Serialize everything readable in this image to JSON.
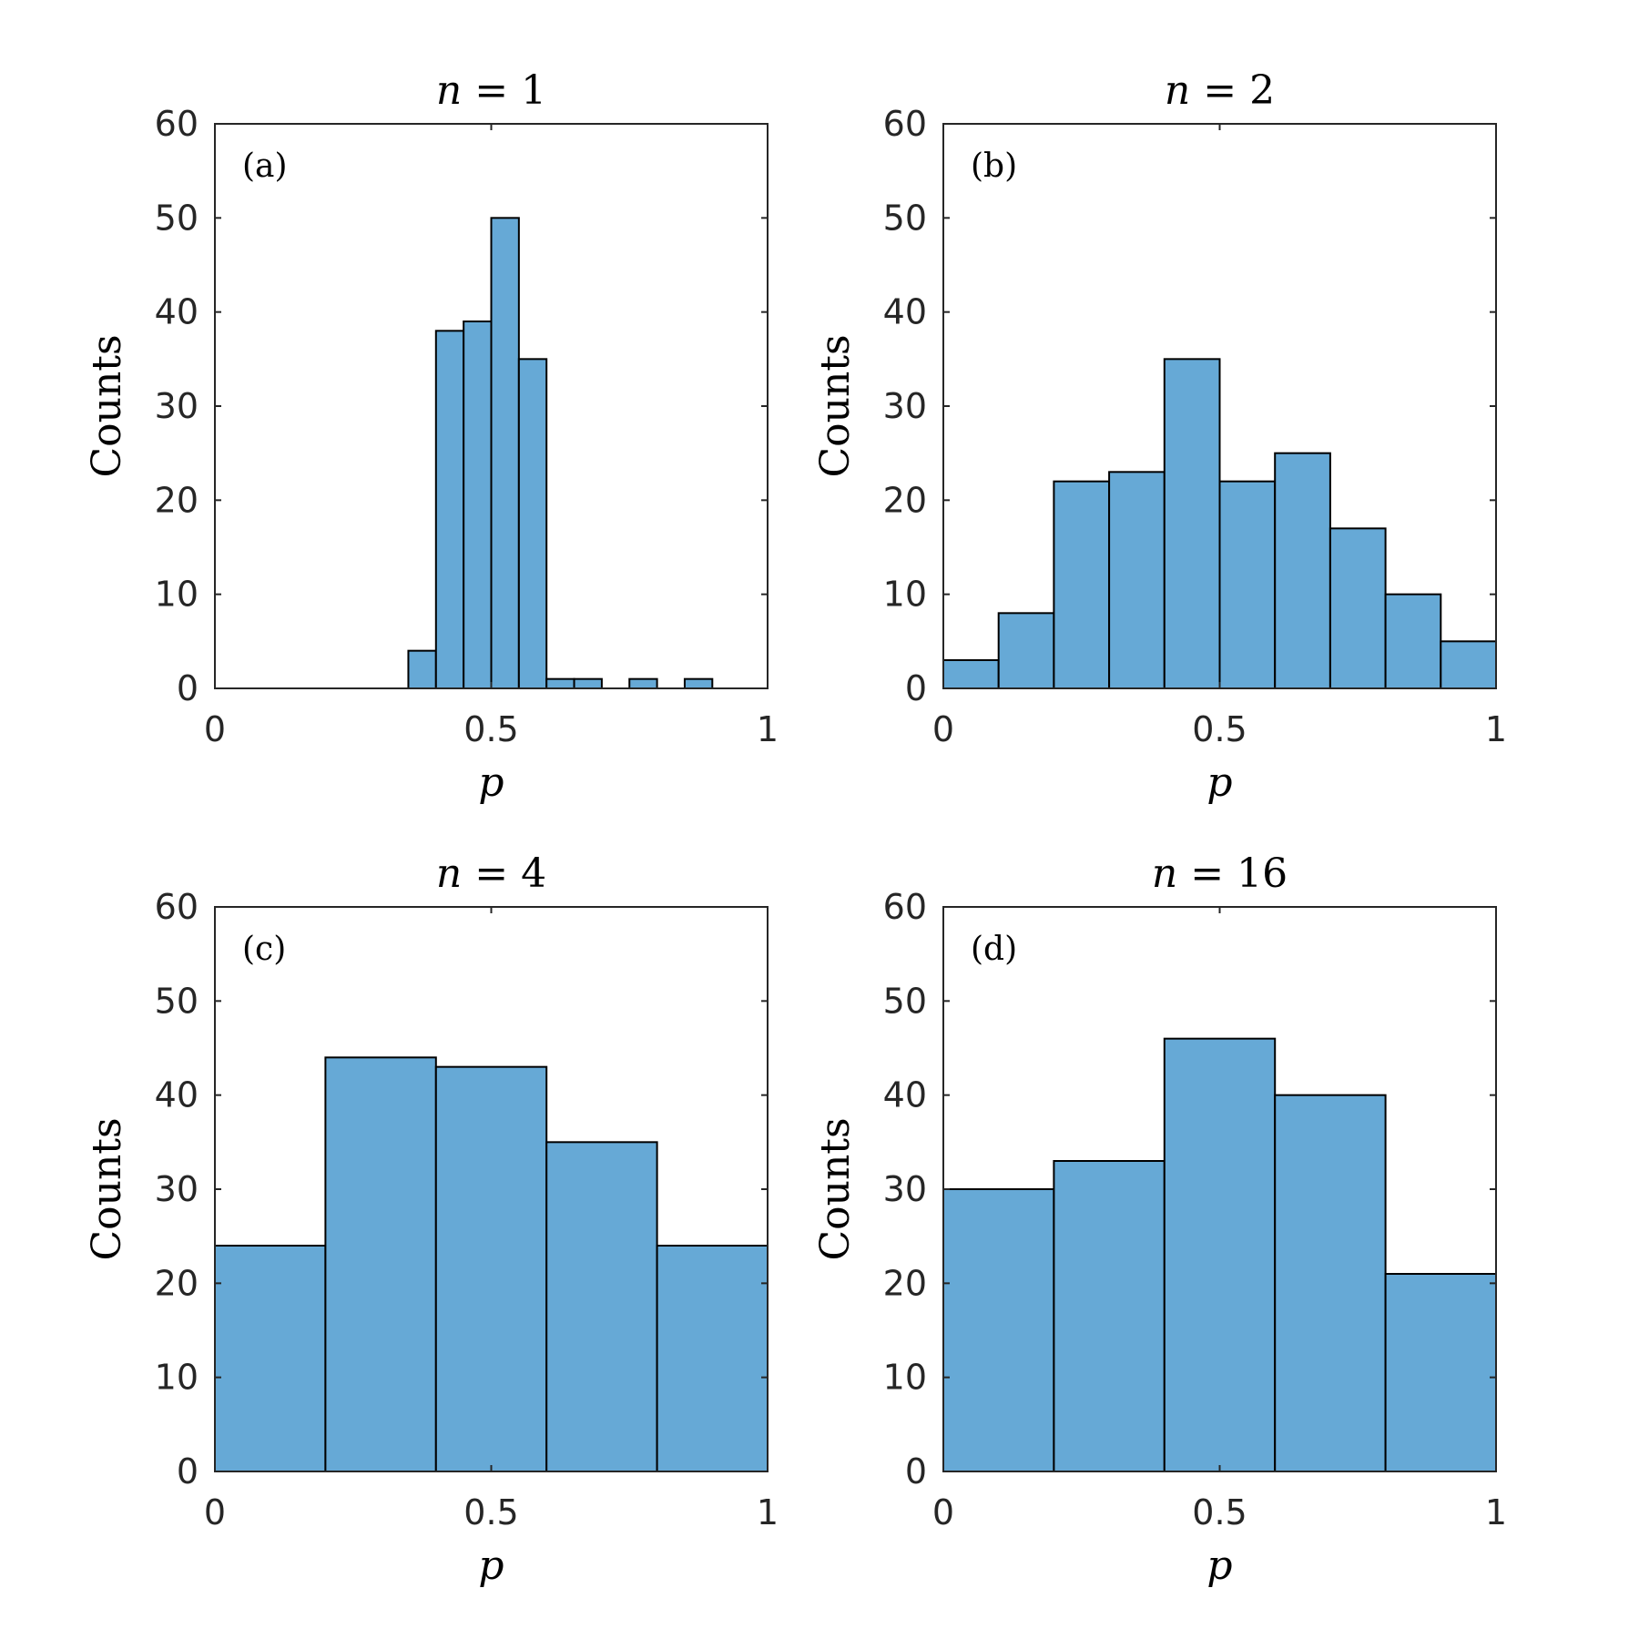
{
  "chart_data": [
    {
      "type": "bar",
      "panel_label": "(a)",
      "title_var": "n",
      "title_value": "1",
      "xlabel": "p",
      "ylabel": "Counts",
      "xlim": [
        0,
        1
      ],
      "ylim": [
        0,
        60
      ],
      "xticks": [
        "0",
        "0.5",
        "1"
      ],
      "yticks": [
        "0",
        "10",
        "20",
        "30",
        "40",
        "50",
        "60"
      ],
      "bins": [
        {
          "x0": 0.35,
          "x1": 0.4,
          "count": 4
        },
        {
          "x0": 0.4,
          "x1": 0.45,
          "count": 38
        },
        {
          "x0": 0.45,
          "x1": 0.5,
          "count": 39
        },
        {
          "x0": 0.5,
          "x1": 0.55,
          "count": 50
        },
        {
          "x0": 0.55,
          "x1": 0.6,
          "count": 35
        },
        {
          "x0": 0.6,
          "x1": 0.65,
          "count": 1
        },
        {
          "x0": 0.65,
          "x1": 0.7,
          "count": 1
        },
        {
          "x0": 0.75,
          "x1": 0.8,
          "count": 1
        },
        {
          "x0": 0.85,
          "x1": 0.9,
          "count": 1
        }
      ]
    },
    {
      "type": "bar",
      "panel_label": "(b)",
      "title_var": "n",
      "title_value": "2",
      "xlabel": "p",
      "ylabel": "Counts",
      "xlim": [
        0,
        1
      ],
      "ylim": [
        0,
        60
      ],
      "xticks": [
        "0",
        "0.5",
        "1"
      ],
      "yticks": [
        "0",
        "10",
        "20",
        "30",
        "40",
        "50",
        "60"
      ],
      "bins": [
        {
          "x0": 0.0,
          "x1": 0.1,
          "count": 3
        },
        {
          "x0": 0.1,
          "x1": 0.2,
          "count": 8
        },
        {
          "x0": 0.2,
          "x1": 0.3,
          "count": 22
        },
        {
          "x0": 0.3,
          "x1": 0.4,
          "count": 23
        },
        {
          "x0": 0.4,
          "x1": 0.5,
          "count": 35
        },
        {
          "x0": 0.5,
          "x1": 0.6,
          "count": 22
        },
        {
          "x0": 0.6,
          "x1": 0.7,
          "count": 25
        },
        {
          "x0": 0.7,
          "x1": 0.8,
          "count": 17
        },
        {
          "x0": 0.8,
          "x1": 0.9,
          "count": 10
        },
        {
          "x0": 0.9,
          "x1": 1.0,
          "count": 5
        }
      ]
    },
    {
      "type": "bar",
      "panel_label": "(c)",
      "title_var": "n",
      "title_value": "4",
      "xlabel": "p",
      "ylabel": "Counts",
      "xlim": [
        0,
        1
      ],
      "ylim": [
        0,
        60
      ],
      "xticks": [
        "0",
        "0.5",
        "1"
      ],
      "yticks": [
        "0",
        "10",
        "20",
        "30",
        "40",
        "50",
        "60"
      ],
      "bins": [
        {
          "x0": 0.0,
          "x1": 0.2,
          "count": 24
        },
        {
          "x0": 0.2,
          "x1": 0.4,
          "count": 44
        },
        {
          "x0": 0.4,
          "x1": 0.6,
          "count": 43
        },
        {
          "x0": 0.6,
          "x1": 0.8,
          "count": 35
        },
        {
          "x0": 0.8,
          "x1": 1.0,
          "count": 24
        }
      ]
    },
    {
      "type": "bar",
      "panel_label": "(d)",
      "title_var": "n",
      "title_value": "16",
      "xlabel": "p",
      "ylabel": "Counts",
      "xlim": [
        0,
        1
      ],
      "ylim": [
        0,
        60
      ],
      "xticks": [
        "0",
        "0.5",
        "1"
      ],
      "yticks": [
        "0",
        "10",
        "20",
        "30",
        "40",
        "50",
        "60"
      ],
      "bins": [
        {
          "x0": 0.0,
          "x1": 0.2,
          "count": 30
        },
        {
          "x0": 0.2,
          "x1": 0.4,
          "count": 33
        },
        {
          "x0": 0.4,
          "x1": 0.6,
          "count": 46
        },
        {
          "x0": 0.6,
          "x1": 0.8,
          "count": 40
        },
        {
          "x0": 0.8,
          "x1": 1.0,
          "count": 21
        }
      ]
    }
  ],
  "colors": {
    "bar_fill": "#66a9d6",
    "bar_edge": "#000000",
    "axis": "#262626"
  }
}
